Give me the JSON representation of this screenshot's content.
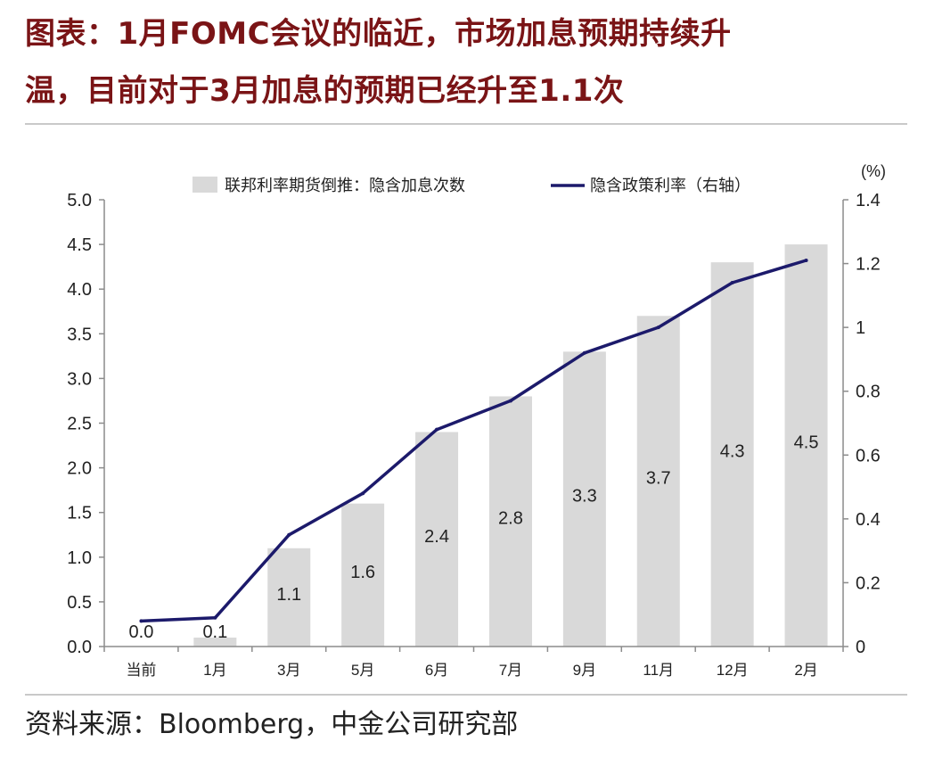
{
  "header": {
    "title_line1": "图表：1月FOMC会议的临近，市场加息预期持续升",
    "title_line2": "温，目前对于3月加息的预期已经升至1.1次"
  },
  "footer": {
    "source": "资料来源：Bloomberg，中金公司研究部"
  },
  "colors": {
    "title": "#7a1416",
    "bar": "#d9d9d9",
    "line": "#1c1a6b",
    "rule": "#c9c9c9"
  },
  "chart_data": {
    "type": "bar",
    "categories": [
      "当前",
      "1月",
      "3月",
      "5月",
      "6月",
      "7月",
      "9月",
      "11月",
      "12月",
      "2月"
    ],
    "series": [
      {
        "name": "联邦利率期货倒推：隐含加息次数",
        "type": "bar",
        "axis": "left",
        "values": [
          0.0,
          0.1,
          1.1,
          1.6,
          2.4,
          2.8,
          3.3,
          3.7,
          4.3,
          4.5
        ],
        "labels": [
          "0.0",
          "0.1",
          "1.1",
          "1.6",
          "2.4",
          "2.8",
          "3.3",
          "3.7",
          "4.3",
          "4.5"
        ]
      },
      {
        "name": "隐含政策利率（右轴）",
        "type": "line",
        "axis": "right",
        "values": [
          0.08,
          0.09,
          0.35,
          0.48,
          0.68,
          0.77,
          0.92,
          1.0,
          1.14,
          1.21
        ]
      }
    ],
    "y_left": {
      "lim": [
        0,
        5
      ],
      "ticks": [
        "0.0",
        "0.5",
        "1.0",
        "1.5",
        "2.0",
        "2.5",
        "3.0",
        "3.5",
        "4.0",
        "4.5",
        "5.0"
      ]
    },
    "y_right": {
      "lim": [
        0,
        1.4
      ],
      "ticks": [
        "0",
        "0.2",
        "0.4",
        "0.6",
        "0.8",
        "1",
        "1.2",
        "1.4"
      ],
      "unit": "(%)"
    },
    "grid": false,
    "legend": "top"
  }
}
